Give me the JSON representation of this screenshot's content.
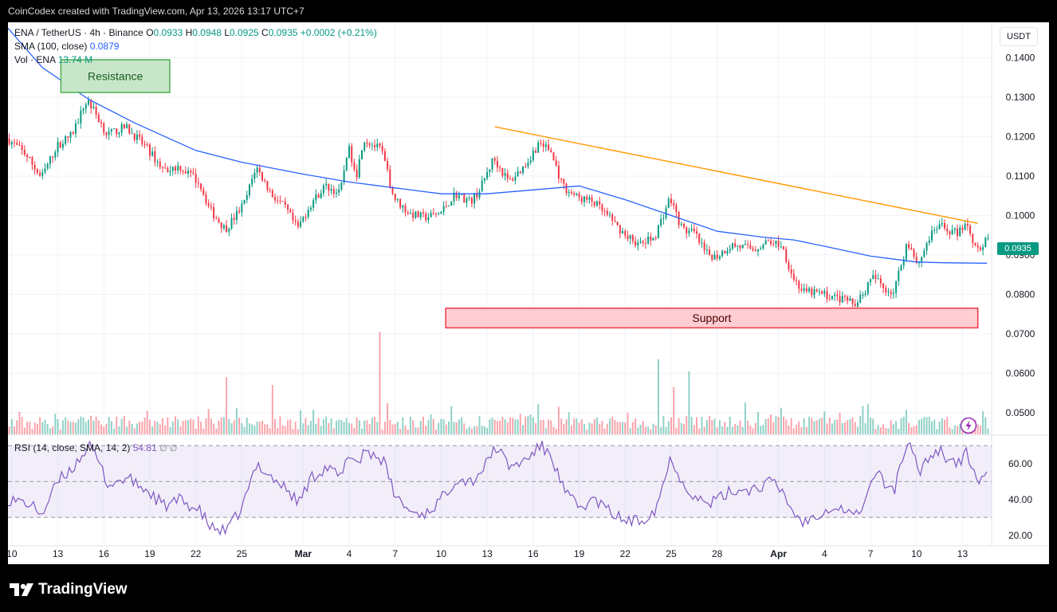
{
  "header": {
    "credit": "CoinCodex created with TradingView.com, Apr 13, 2026 13:17 UTC+7"
  },
  "legend": {
    "symbol": "ENA / TetherUS · 4h · Binance",
    "o_label": "O",
    "o": "0.0933",
    "h_label": "H",
    "h": "0.0948",
    "l_label": "L",
    "l": "0.0925",
    "c_label": "C",
    "c": "0.0935",
    "change": "+0.0002 (+0.21%)",
    "sma_label": "SMA (100, close)",
    "sma_value": "0.0879",
    "vol_label": "Vol · ENA",
    "vol_value": "13.74 M",
    "rsi_label": "RSI (14, close, SMA, 14, 2)",
    "rsi_value": "54.81",
    "rsi_extra": "∅ ∅"
  },
  "unit_button": "USDT",
  "last_price": "0.0935",
  "boxes": {
    "resistance": "Resistance",
    "support": "Support"
  },
  "brand": {
    "name": "TradingView",
    "logo_icon": "tradingview-logo-icon"
  },
  "colors": {
    "up": "#089981",
    "down": "#f23645",
    "sma": "#2962ff",
    "trend": "#ff9800",
    "rsi": "#7e57c2",
    "resistance_fill": "#c8e6c9",
    "resistance_border": "#4caf50",
    "support_fill": "#ffcdd2",
    "support_border": "#f23645"
  },
  "chart_data": {
    "type": "candlestick",
    "pair": "ENA / TetherUS",
    "interval": "4h",
    "exchange": "Binance",
    "ylim": [
      0.0445,
      0.149
    ],
    "price_ticks": [
      "0.1400",
      "0.1300",
      "0.1200",
      "0.1100",
      "0.1000",
      "0.0900",
      "0.0800",
      "0.0700",
      "0.0600",
      "0.0500"
    ],
    "x_ticks": [
      {
        "label": "10",
        "day": 10
      },
      {
        "label": "13",
        "day": 13
      },
      {
        "label": "16",
        "day": 16
      },
      {
        "label": "19",
        "day": 19
      },
      {
        "label": "22",
        "day": 22
      },
      {
        "label": "25",
        "day": 25
      },
      {
        "label": "Mar",
        "day": 29
      },
      {
        "label": "4",
        "day": 32
      },
      {
        "label": "7",
        "day": 35
      },
      {
        "label": "10",
        "day": 38
      },
      {
        "label": "13",
        "day": 41
      },
      {
        "label": "16",
        "day": 44
      },
      {
        "label": "19",
        "day": 47
      },
      {
        "label": "22",
        "day": 50
      },
      {
        "label": "25",
        "day": 53
      },
      {
        "label": "28",
        "day": 56
      },
      {
        "label": "Apr",
        "day": 60
      },
      {
        "label": "4",
        "day": 63
      },
      {
        "label": "7",
        "day": 66
      },
      {
        "label": "10",
        "day": 69
      },
      {
        "label": "13",
        "day": 72
      }
    ],
    "x_range_days": [
      9.75,
      73.9
    ],
    "price_path": [
      [
        9.8,
        0.1195
      ],
      [
        11,
        0.1155
      ],
      [
        12,
        0.1095
      ],
      [
        13,
        0.1175
      ],
      [
        14,
        0.1205
      ],
      [
        15,
        0.1295
      ],
      [
        15.6,
        0.1255
      ],
      [
        16.3,
        0.1205
      ],
      [
        17.5,
        0.1225
      ],
      [
        18.8,
        0.1175
      ],
      [
        20,
        0.1115
      ],
      [
        21,
        0.1125
      ],
      [
        22.3,
        0.1085
      ],
      [
        23,
        0.1015
      ],
      [
        24,
        0.0965
      ],
      [
        24.6,
        0.0995
      ],
      [
        25.3,
        0.1035
      ],
      [
        26,
        0.1125
      ],
      [
        27,
        0.1055
      ],
      [
        28,
        0.1015
      ],
      [
        28.7,
        0.0965
      ],
      [
        29.5,
        0.1025
      ],
      [
        30.5,
        0.1075
      ],
      [
        31.5,
        0.1055
      ],
      [
        32,
        0.1175
      ],
      [
        32.6,
        0.1105
      ],
      [
        33,
        0.1195
      ],
      [
        34.2,
        0.1165
      ],
      [
        35,
        0.1045
      ],
      [
        36,
        0.1005
      ],
      [
        37,
        0.0995
      ],
      [
        38,
        0.1005
      ],
      [
        39,
        0.1055
      ],
      [
        40,
        0.1035
      ],
      [
        40.6,
        0.1065
      ],
      [
        41.5,
        0.1145
      ],
      [
        42.5,
        0.1085
      ],
      [
        43.5,
        0.1125
      ],
      [
        44.5,
        0.1185
      ],
      [
        45.2,
        0.1165
      ],
      [
        46,
        0.1075
      ],
      [
        47,
        0.1045
      ],
      [
        48,
        0.1035
      ],
      [
        49,
        0.0995
      ],
      [
        50,
        0.0955
      ],
      [
        51,
        0.0925
      ],
      [
        52,
        0.0945
      ],
      [
        53,
        0.1045
      ],
      [
        53.8,
        0.0965
      ],
      [
        54.6,
        0.0955
      ],
      [
        55.3,
        0.0905
      ],
      [
        56,
        0.0895
      ],
      [
        57,
        0.0925
      ],
      [
        58.5,
        0.0915
      ],
      [
        59.5,
        0.0935
      ],
      [
        60.3,
        0.0925
      ],
      [
        61,
        0.0845
      ],
      [
        61.7,
        0.0805
      ],
      [
        62.5,
        0.0805
      ],
      [
        63.5,
        0.0795
      ],
      [
        64.5,
        0.0785
      ],
      [
        65,
        0.0775
      ],
      [
        65.8,
        0.0815
      ],
      [
        66.3,
        0.0845
      ],
      [
        67,
        0.0815
      ],
      [
        67.6,
        0.0805
      ],
      [
        68,
        0.0865
      ],
      [
        68.5,
        0.0935
      ],
      [
        69.2,
        0.0875
      ],
      [
        69.8,
        0.0935
      ],
      [
        70.5,
        0.0975
      ],
      [
        71,
        0.0965
      ],
      [
        71.8,
        0.0955
      ],
      [
        72.3,
        0.0985
      ],
      [
        72.9,
        0.0925
      ],
      [
        73.3,
        0.0915
      ],
      [
        73.6,
        0.0935
      ]
    ],
    "sma": [
      [
        9.75,
        0.1475
      ],
      [
        12,
        0.1375
      ],
      [
        15,
        0.1295
      ],
      [
        18,
        0.1235
      ],
      [
        22,
        0.1165
      ],
      [
        25,
        0.1135
      ],
      [
        29,
        0.1105
      ],
      [
        32,
        0.1085
      ],
      [
        35,
        0.107
      ],
      [
        38,
        0.1055
      ],
      [
        41,
        0.1055
      ],
      [
        44,
        0.1065
      ],
      [
        47,
        0.1075
      ],
      [
        50,
        0.104
      ],
      [
        53,
        0.1
      ],
      [
        56,
        0.096
      ],
      [
        59,
        0.0945
      ],
      [
        61,
        0.0938
      ],
      [
        63,
        0.0922
      ],
      [
        66,
        0.0897
      ],
      [
        69,
        0.0882
      ],
      [
        71,
        0.088
      ],
      [
        73.6,
        0.0879
      ]
    ],
    "trendline": [
      [
        41.5,
        0.1225
      ],
      [
        73,
        0.098
      ]
    ],
    "resistance_zone": {
      "days": [
        13.2,
        20.3
      ],
      "price": [
        0.1312,
        0.1395
      ]
    },
    "support_zone": {
      "days": [
        38.3,
        73.0
      ],
      "price": [
        0.0715,
        0.0765
      ]
    },
    "volume_peaks": [
      [
        34,
        0.0705
      ],
      [
        24,
        0.059
      ],
      [
        52,
        0.0635
      ],
      [
        54,
        0.0605
      ],
      [
        53,
        0.0565
      ],
      [
        27,
        0.057
      ]
    ],
    "rsi": {
      "ylim": [
        15,
        75
      ],
      "levels": [
        70,
        50,
        30
      ],
      "ticks": [
        "60.00",
        "40.00",
        "20.00"
      ],
      "last": 54.81,
      "path": [
        [
          9.8,
          40
        ],
        [
          11,
          38
        ],
        [
          12,
          32
        ],
        [
          13,
          50
        ],
        [
          14,
          58
        ],
        [
          15,
          70
        ],
        [
          15.6,
          62
        ],
        [
          16.3,
          48
        ],
        [
          17.5,
          52
        ],
        [
          18.8,
          45
        ],
        [
          20,
          36
        ],
        [
          21,
          40
        ],
        [
          22.3,
          33
        ],
        [
          23,
          24
        ],
        [
          24,
          22
        ],
        [
          25,
          35
        ],
        [
          26,
          60
        ],
        [
          27,
          52
        ],
        [
          28,
          45
        ],
        [
          28.7,
          38
        ],
        [
          29.5,
          52
        ],
        [
          30.5,
          58
        ],
        [
          31.5,
          52
        ],
        [
          32,
          66
        ],
        [
          32.6,
          60
        ],
        [
          33,
          68
        ],
        [
          34.2,
          62
        ],
        [
          35,
          42
        ],
        [
          36,
          33
        ],
        [
          37,
          32
        ],
        [
          38,
          40
        ],
        [
          39,
          52
        ],
        [
          40,
          50
        ],
        [
          41,
          60
        ],
        [
          41.5,
          70
        ],
        [
          42.5,
          58
        ],
        [
          43.5,
          62
        ],
        [
          44.5,
          70
        ],
        [
          45.2,
          64
        ],
        [
          46,
          45
        ],
        [
          47,
          35
        ],
        [
          48,
          40
        ],
        [
          49,
          33
        ],
        [
          50,
          28
        ],
        [
          51,
          28
        ],
        [
          52,
          35
        ],
        [
          53,
          64
        ],
        [
          53.8,
          48
        ],
        [
          54.6,
          42
        ],
        [
          55.3,
          37
        ],
        [
          56,
          40
        ],
        [
          57,
          45
        ],
        [
          58.5,
          46
        ],
        [
          59.5,
          50
        ],
        [
          60.3,
          44
        ],
        [
          61,
          32
        ],
        [
          61.7,
          27
        ],
        [
          62.5,
          32
        ],
        [
          63.5,
          36
        ],
        [
          64.5,
          34
        ],
        [
          65,
          30
        ],
        [
          65.8,
          42
        ],
        [
          66.3,
          56
        ],
        [
          67,
          48
        ],
        [
          67.6,
          46
        ],
        [
          68,
          62
        ],
        [
          68.5,
          70
        ],
        [
          69.2,
          56
        ],
        [
          69.8,
          64
        ],
        [
          70.5,
          68
        ],
        [
          71,
          63
        ],
        [
          71.8,
          60
        ],
        [
          72.3,
          66
        ],
        [
          72.9,
          52
        ],
        [
          73.3,
          50
        ],
        [
          73.6,
          54.81
        ]
      ]
    }
  }
}
